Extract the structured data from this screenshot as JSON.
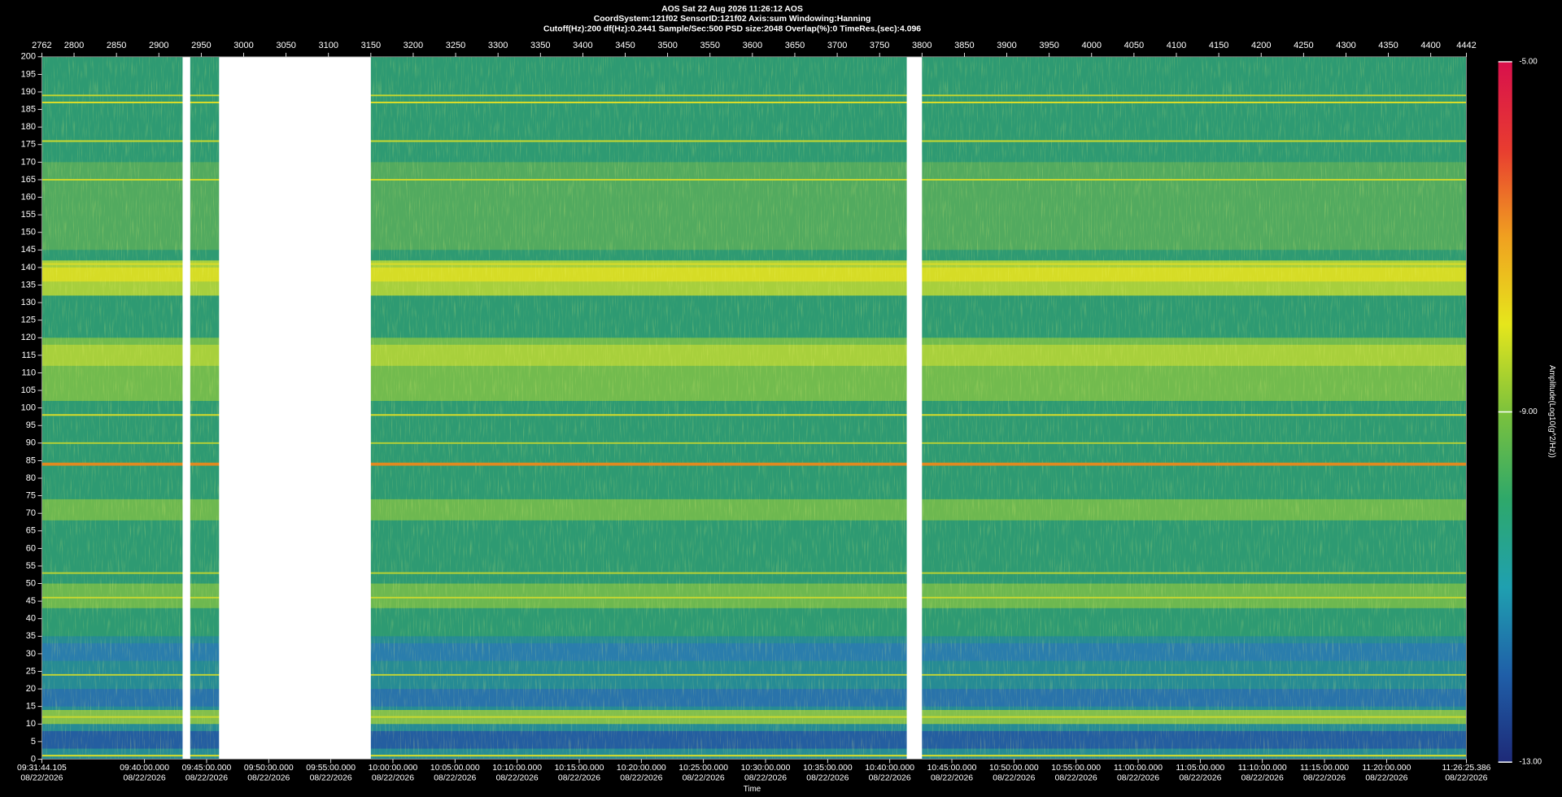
{
  "chart_data": {
    "type": "spectrogram",
    "title": "AOS  Sat 22 Aug 2026 11:26:12  AOS",
    "subtitle": [
      "CoordSystem:121f02   SensorID:121f02    Axis:sum    Windowing:Hanning",
      "Cutoff(Hz):200     df(Hz):0.2441     Sample/Sec:500     PSD size:2048     Overlap(%):0     TimeRes.(sec):4.096"
    ],
    "xlabel": "Time",
    "colorbar_label": "Amplitude(Log10(g^2/Hz))",
    "xlim": [
      2762,
      4442
    ],
    "xticks": [
      2762,
      2800,
      2850,
      2900,
      2950,
      3000,
      3050,
      3100,
      3150,
      3200,
      3250,
      3300,
      3350,
      3400,
      3450,
      3500,
      3550,
      3600,
      3650,
      3700,
      3750,
      3800,
      3850,
      3900,
      3950,
      4000,
      4050,
      4100,
      4150,
      4200,
      4250,
      4300,
      4350,
      4400,
      4442
    ],
    "time_ticks": [
      {
        "value": 2762,
        "label": "09:31:44.105",
        "date": "08/22/2026"
      },
      {
        "value": 2883.07,
        "label": "09:40:00.000",
        "date": "08/22/2026"
      },
      {
        "value": 2956.31,
        "label": "09:45:00.000",
        "date": "08/22/2026"
      },
      {
        "value": 3029.56,
        "label": "09:50:00.000",
        "date": "08/22/2026"
      },
      {
        "value": 3102.8,
        "label": "09:55:00.000",
        "date": "08/22/2026"
      },
      {
        "value": 3176.04,
        "label": "10:00:00.000",
        "date": "08/22/2026"
      },
      {
        "value": 3249.28,
        "label": "10:05:00.000",
        "date": "08/22/2026"
      },
      {
        "value": 3322.52,
        "label": "10:10:00.000",
        "date": "08/22/2026"
      },
      {
        "value": 3395.77,
        "label": "10:15:00.000",
        "date": "08/22/2026"
      },
      {
        "value": 3469.01,
        "label": "10:20:00.000",
        "date": "08/22/2026"
      },
      {
        "value": 3542.25,
        "label": "10:25:00.000",
        "date": "08/22/2026"
      },
      {
        "value": 3615.49,
        "label": "10:30:00.000",
        "date": "08/22/2026"
      },
      {
        "value": 3688.74,
        "label": "10:35:00.000",
        "date": "08/22/2026"
      },
      {
        "value": 3761.98,
        "label": "10:40:00.000",
        "date": "08/22/2026"
      },
      {
        "value": 3835.22,
        "label": "10:45:00.000",
        "date": "08/22/2026"
      },
      {
        "value": 3908.46,
        "label": "10:50:00.000",
        "date": "08/22/2026"
      },
      {
        "value": 3981.7,
        "label": "10:55:00.000",
        "date": "08/22/2026"
      },
      {
        "value": 4054.95,
        "label": "11:00:00.000",
        "date": "08/22/2026"
      },
      {
        "value": 4128.19,
        "label": "11:05:00.000",
        "date": "08/22/2026"
      },
      {
        "value": 4201.43,
        "label": "11:10:00.000",
        "date": "08/22/2026"
      },
      {
        "value": 4274.67,
        "label": "11:15:00.000",
        "date": "08/22/2026"
      },
      {
        "value": 4347.92,
        "label": "11:20:00.000",
        "date": "08/22/2026"
      },
      {
        "value": 4442,
        "label": "11:26:25.386",
        "date": "08/22/2026"
      }
    ],
    "ylim": [
      0,
      200
    ],
    "yticks": [
      0,
      5,
      10,
      15,
      20,
      25,
      30,
      35,
      40,
      45,
      50,
      55,
      60,
      65,
      70,
      75,
      80,
      85,
      90,
      95,
      100,
      105,
      110,
      115,
      120,
      125,
      130,
      135,
      140,
      145,
      150,
      155,
      160,
      165,
      170,
      175,
      180,
      185,
      190,
      195,
      200
    ],
    "base_color": "#2e9a72",
    "bands": [
      {
        "from": 0,
        "to": 35,
        "color": "#24889a"
      },
      {
        "from": 3,
        "to": 8,
        "color": "#2456a2"
      },
      {
        "from": 10,
        "to": 14,
        "color": "#94c840"
      },
      {
        "from": 15,
        "to": 20,
        "color": "#2a6fae"
      },
      {
        "from": 28,
        "to": 33,
        "color": "#2b7ab0"
      },
      {
        "from": 43,
        "to": 50,
        "color": "#78bd4a"
      },
      {
        "from": 68,
        "to": 74,
        "color": "#78bd4a"
      },
      {
        "from": 102,
        "to": 120,
        "color": "#7ec148"
      },
      {
        "from": 112,
        "to": 118,
        "color": "#b2d43a"
      },
      {
        "from": 132,
        "to": 142,
        "color": "#bcd834"
      },
      {
        "from": 136,
        "to": 140,
        "color": "#dede22"
      },
      {
        "from": 145,
        "to": 170,
        "color": "#58ad5c"
      }
    ],
    "lines": [
      {
        "hz": 1,
        "color": "#d8dc2a"
      },
      {
        "hz": 12,
        "color": "#c8d830"
      },
      {
        "hz": 24,
        "color": "#c8d830"
      },
      {
        "hz": 46,
        "color": "#c8d830"
      },
      {
        "hz": 53,
        "color": "#b8d234"
      },
      {
        "hz": 84,
        "color": "#e08a20"
      },
      {
        "hz": 90,
        "color": "#b8d234"
      },
      {
        "hz": 98,
        "color": "#d8dc2a"
      },
      {
        "hz": 141,
        "color": "#d8dc2a"
      },
      {
        "hz": 165,
        "color": "#c8d830"
      },
      {
        "hz": 176,
        "color": "#c8d830"
      },
      {
        "hz": 187,
        "color": "#d8dc2a"
      },
      {
        "hz": 189,
        "color": "#c8d830"
      }
    ],
    "gaps": [
      [
        2928,
        2937
      ],
      [
        2971,
        3150
      ],
      [
        3782,
        3800
      ]
    ],
    "gap_color": "#ffffff",
    "clim": [
      -13,
      -5
    ],
    "cticks": [
      {
        "value": -13,
        "label": "-13.00"
      },
      {
        "value": -9,
        "label": "-9.00"
      },
      {
        "value": -5,
        "label": "-5.00"
      }
    ],
    "colormap": [
      "#1e2a78",
      "#1f5fa8",
      "#1fa0b0",
      "#2ea86a",
      "#7cc23c",
      "#e6e61c",
      "#f0a020",
      "#e83c30",
      "#d8104c"
    ]
  }
}
